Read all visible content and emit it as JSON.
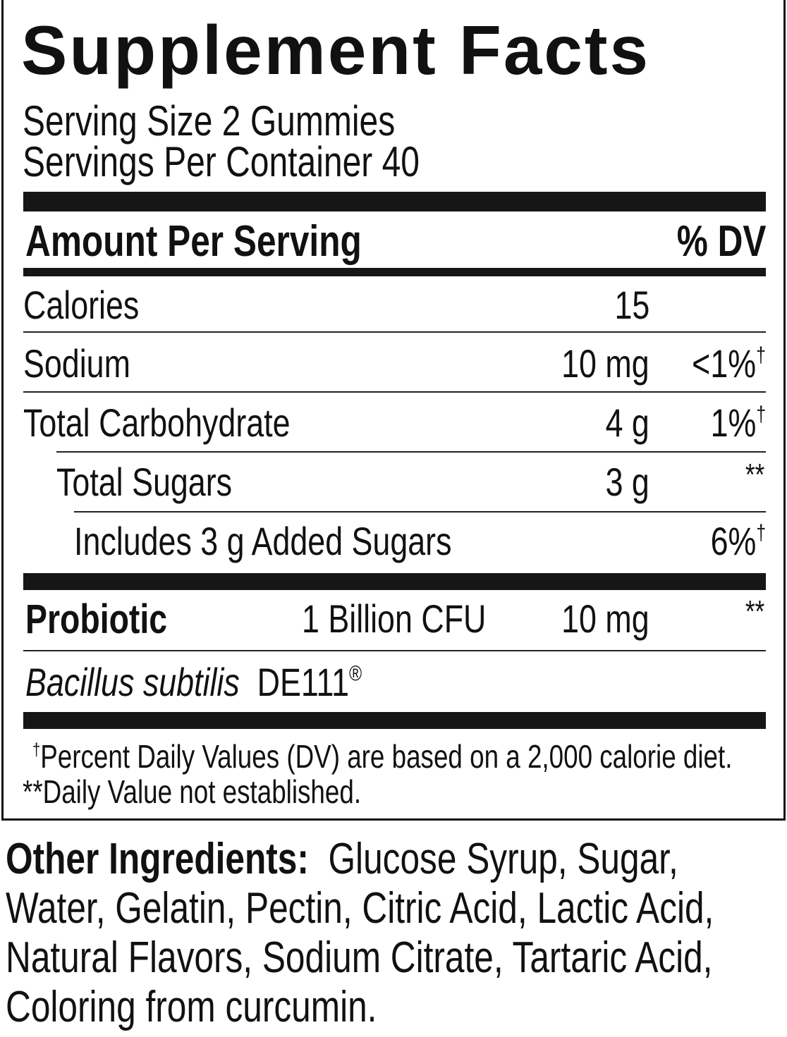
{
  "title": "Supplement Facts",
  "serving_size": "Serving Size 2 Gummies",
  "servings_per_container": "Servings Per Container 40",
  "header": {
    "amount": "Amount Per Serving",
    "dv": "% DV"
  },
  "rows": [
    {
      "label": "Calories",
      "amount": "15",
      "dv": ""
    },
    {
      "label": "Sodium",
      "amount": "10 mg",
      "dv": "<1%",
      "mark": "†"
    },
    {
      "label": "Total Carbohydrate",
      "amount": "4 g",
      "dv": "1%",
      "mark": "†"
    },
    {
      "label": "Total Sugars",
      "amount": "3 g",
      "dv": "**"
    },
    {
      "label": "Includes 3 g Added Sugars",
      "amount": "",
      "dv": "6%",
      "mark": "†"
    }
  ],
  "probiotic": {
    "label": "Probiotic",
    "cfu": "1 Billion CFU",
    "amount": "10 mg",
    "dv": "**",
    "strain_italic": "Bacillus subtilis",
    "strain": "DE111",
    "reg": "®"
  },
  "footnotes": {
    "dagger": "†",
    "dv_note": "Percent Daily Values (DV) are based on a 2,000 calorie diet.",
    "not_established": "**Daily Value not established."
  },
  "other_ingredients": {
    "label": "Other Ingredients:",
    "lines": [
      "Glucose Syrup, Sugar,",
      "Water, Gelatin, Pectin, Citric Acid, Lactic Acid,",
      "Natural Flavors, Sodium Citrate, Tartaric Acid,",
      "Coloring from curcumin."
    ]
  }
}
